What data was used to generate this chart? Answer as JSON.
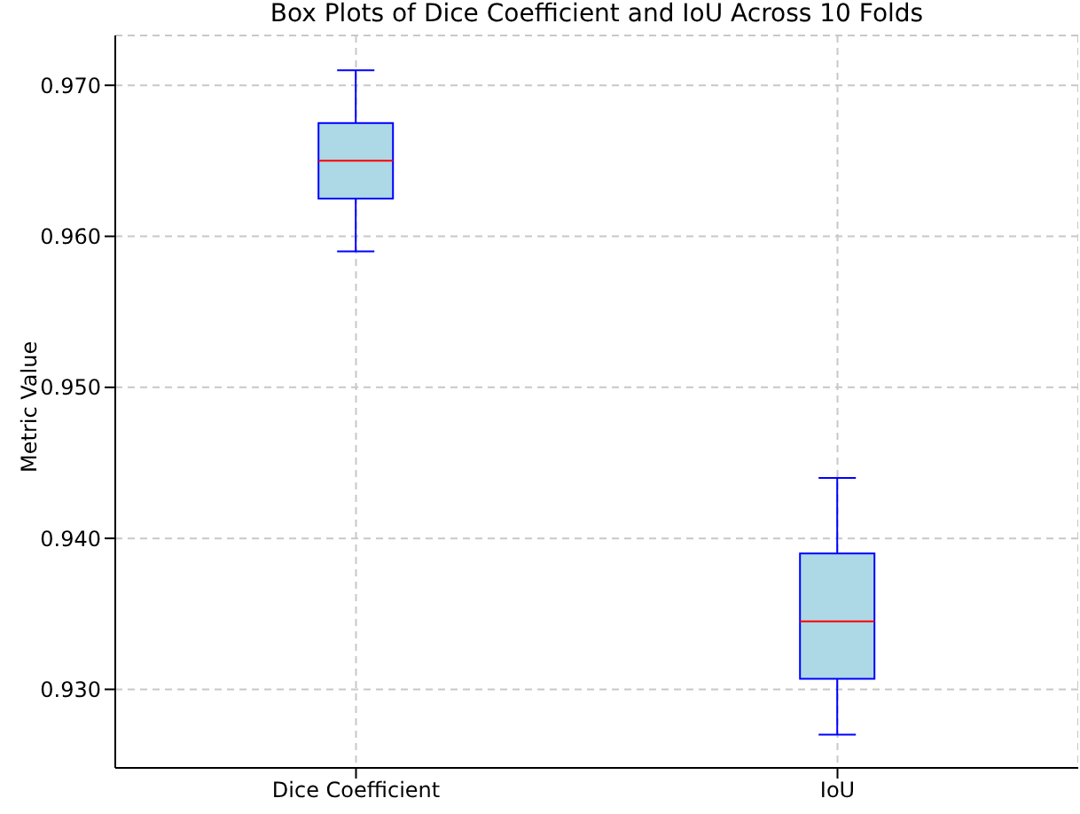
{
  "chart_data": {
    "type": "box",
    "title": "Box Plots of Dice Coefficient and IoU Across 10 Folds",
    "ylabel": "Metric Value",
    "categories": [
      "Dice Coefficient",
      "IoU"
    ],
    "series": [
      {
        "color": "#add8e6",
        "boxes": [
          {
            "low": 0.959,
            "q1": 0.9625,
            "median": 0.965,
            "q3": 0.9675,
            "high": 0.971
          },
          {
            "low": 0.927,
            "q1": 0.9307,
            "median": 0.9345,
            "q3": 0.939,
            "high": 0.944
          }
        ]
      }
    ],
    "ylim": [
      0.9248,
      0.9733
    ],
    "yticks": [
      {
        "value": 0.93,
        "label": "0.930"
      },
      {
        "value": 0.94,
        "label": "0.940"
      },
      {
        "value": 0.95,
        "label": "0.950"
      },
      {
        "value": 0.96,
        "label": "0.960"
      },
      {
        "value": 0.97,
        "label": "0.970"
      }
    ],
    "grid": true
  }
}
